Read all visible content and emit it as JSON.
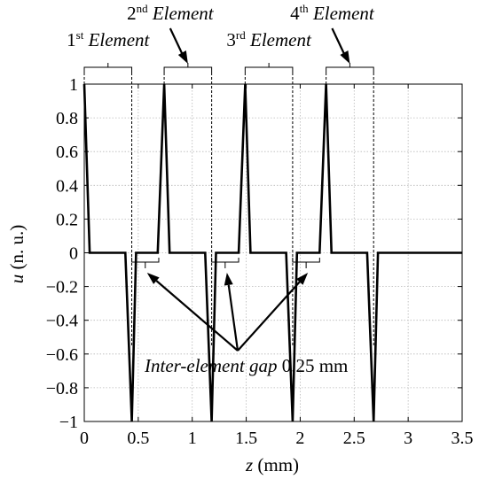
{
  "chart_data": {
    "type": "line",
    "xlabel": {
      "var": "z",
      "unit": " (mm)"
    },
    "ylabel": {
      "var": "u",
      "unit": " (n. u.)"
    },
    "xlim": [
      0,
      3.5
    ],
    "ylim": [
      -1,
      1
    ],
    "xticks": [
      0,
      0.5,
      1,
      1.5,
      2,
      2.5,
      3,
      3.5
    ],
    "xtick_labels": [
      "0",
      "0.5",
      "1",
      "1.5",
      "2",
      "2.5",
      "3",
      "3.5"
    ],
    "yticks": [
      -1,
      -0.8,
      -0.6,
      -0.4,
      -0.2,
      0,
      0.2,
      0.4,
      0.6,
      0.8,
      1
    ],
    "ytick_labels": [
      "−1",
      "−0.8",
      "−0.6",
      "−0.4",
      "−0.2",
      "0",
      "0.2",
      "0.4",
      "0.6",
      "0.8",
      "1"
    ],
    "grid": true,
    "series": [
      {
        "x": [
          0,
          0.05,
          0.38,
          0.44,
          0.48,
          0.68,
          0.74,
          0.79,
          1.12,
          1.18,
          1.22,
          1.43,
          1.49,
          1.54,
          1.87,
          1.93,
          1.97,
          2.18,
          2.24,
          2.29,
          2.62,
          2.68,
          2.72,
          3.5
        ],
        "y": [
          1,
          0,
          0,
          -1,
          0,
          0,
          1,
          0,
          0,
          -1,
          0,
          0,
          1,
          0,
          0,
          -1,
          0,
          0,
          1,
          0,
          0,
          -1,
          0,
          0
        ]
      }
    ],
    "elements": [
      {
        "ordinal": "1",
        "suffix": "st",
        "word": "Element",
        "span": [
          0,
          0.44
        ]
      },
      {
        "ordinal": "2",
        "suffix": "nd",
        "word": "Element",
        "span": [
          0.74,
          1.18
        ]
      },
      {
        "ordinal": "3",
        "suffix": "rd",
        "word": "Element",
        "span": [
          1.49,
          1.93
        ]
      },
      {
        "ordinal": "4",
        "suffix": "th",
        "word": "Element",
        "span": [
          2.24,
          2.68
        ]
      }
    ],
    "gaps": [
      [
        0.44,
        0.69
      ],
      [
        1.18,
        1.43
      ],
      [
        1.93,
        2.18
      ]
    ],
    "gap_annotation": {
      "italic": "Inter-element gap",
      "value": " 0.25 mm"
    }
  }
}
